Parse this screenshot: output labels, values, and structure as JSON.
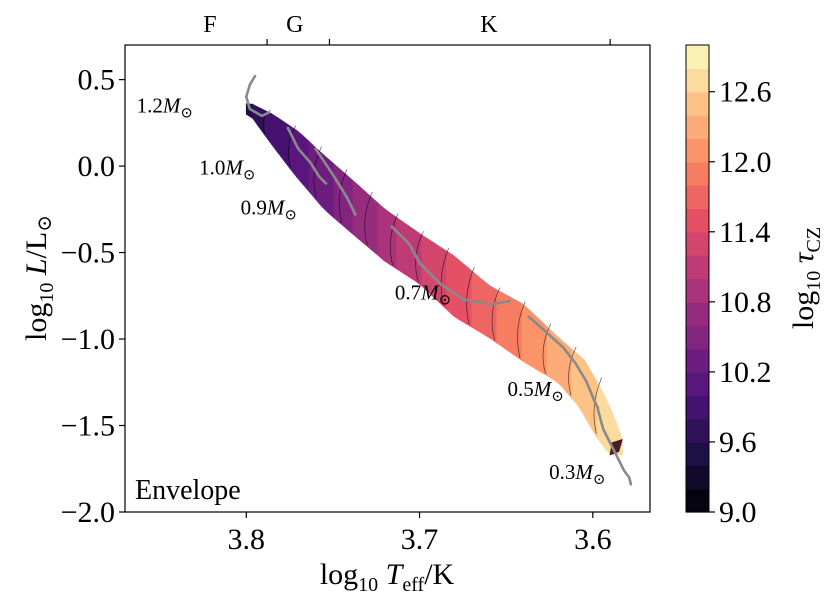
{
  "chart_data": {
    "type": "scatter",
    "panel_label": "Envelope",
    "xaxis": {
      "min": 3.87,
      "max": 3.567,
      "inverted": true,
      "ticks": [
        3.8,
        3.7,
        3.6
      ],
      "tick_labels": [
        "3.8",
        "3.7",
        "3.6"
      ],
      "label_prefix": "log",
      "label_sub": "10",
      "label_var": "T",
      "label_var_sub": "eff",
      "label_suffix": "/K"
    },
    "yaxis": {
      "min": -2.0,
      "max": 0.7,
      "ticks": [
        0.5,
        0.0,
        -0.5,
        -1.0,
        -1.5,
        -2.0
      ],
      "tick_labels": [
        "0.5",
        "0.0",
        "−0.5",
        "−1.0",
        "−1.5",
        "−2.0"
      ],
      "label_prefix": "log",
      "label_sub": "10",
      "label_var": "L",
      "label_suffix": "/L",
      "label_sun": "⊙"
    },
    "top_axis": {
      "spectral_types": [
        "F",
        "G",
        "K"
      ],
      "spectral_label_x": [
        3.821,
        3.772,
        3.66
      ],
      "boundaries": [
        3.788,
        3.752,
        3.59
      ]
    },
    "colorbar": {
      "min": 9.0,
      "max": 13.0,
      "levels": 20,
      "ticks": [
        9.0,
        9.6,
        10.2,
        10.8,
        11.4,
        12.0,
        12.6
      ],
      "tick_labels": [
        "9.0",
        "9.6",
        "10.2",
        "10.8",
        "11.4",
        "12.0",
        "12.6"
      ],
      "label_prefix": "log",
      "label_sub": "10",
      "label_var": "τ",
      "label_var_sub": "CZ",
      "colormap": "magma",
      "colormap_stops": [
        "#000004",
        "#1c1044",
        "#4f127b",
        "#812581",
        "#b5367a",
        "#e55064",
        "#fb8861",
        "#fec287",
        "#fcfdbf"
      ]
    },
    "band": {
      "color_value": "linear in log Teff",
      "upper_edge": [
        [
          3.797,
          0.36
        ],
        [
          3.785,
          0.3
        ],
        [
          3.77,
          0.2
        ],
        [
          3.755,
          0.06
        ],
        [
          3.74,
          -0.07
        ],
        [
          3.72,
          -0.25
        ],
        [
          3.7,
          -0.39
        ],
        [
          3.68,
          -0.52
        ],
        [
          3.66,
          -0.69
        ],
        [
          3.64,
          -0.8
        ],
        [
          3.62,
          -0.99
        ],
        [
          3.605,
          -1.12
        ],
        [
          3.595,
          -1.29
        ],
        [
          3.588,
          -1.44
        ],
        [
          3.583,
          -1.58
        ]
      ],
      "lower_edge": [
        [
          3.59,
          -1.67
        ],
        [
          3.597,
          -1.58
        ],
        [
          3.608,
          -1.39
        ],
        [
          3.62,
          -1.25
        ],
        [
          3.64,
          -1.13
        ],
        [
          3.66,
          -0.99
        ],
        [
          3.68,
          -0.87
        ],
        [
          3.7,
          -0.68
        ],
        [
          3.72,
          -0.55
        ],
        [
          3.74,
          -0.38
        ],
        [
          3.755,
          -0.25
        ],
        [
          3.772,
          -0.05
        ],
        [
          3.785,
          0.12
        ],
        [
          3.798,
          0.3
        ]
      ]
    },
    "tracks": [
      {
        "mass": "1.2",
        "points": [
          [
            3.795,
            0.52
          ],
          [
            3.798,
            0.47
          ],
          [
            3.8,
            0.4
          ],
          [
            3.798,
            0.33
          ],
          [
            3.791,
            0.29
          ],
          [
            3.787,
            0.31
          ]
        ]
      },
      {
        "mass": "1.0",
        "points": [
          [
            3.776,
            0.22
          ],
          [
            3.773,
            0.16
          ],
          [
            3.77,
            0.1
          ],
          [
            3.763,
            0.02
          ],
          [
            3.758,
            -0.06
          ],
          [
            3.754,
            -0.1
          ]
        ]
      },
      {
        "mass": "0.9",
        "points": [
          [
            3.76,
            0.1
          ],
          [
            3.75,
            -0.05
          ],
          [
            3.742,
            -0.18
          ],
          [
            3.737,
            -0.28
          ]
        ]
      },
      {
        "mass": "0.7",
        "points": [
          [
            3.716,
            -0.35
          ],
          [
            3.706,
            -0.45
          ],
          [
            3.7,
            -0.56
          ],
          [
            3.688,
            -0.68
          ],
          [
            3.675,
            -0.77
          ],
          [
            3.658,
            -0.8
          ],
          [
            3.648,
            -0.78
          ]
        ]
      },
      {
        "mass": "0.5",
        "points": [
          [
            3.637,
            -0.87
          ],
          [
            3.628,
            -0.95
          ],
          [
            3.617,
            -1.05
          ],
          [
            3.61,
            -1.14
          ],
          [
            3.604,
            -1.24
          ],
          [
            3.599,
            -1.36
          ],
          [
            3.597,
            -1.4
          ]
        ]
      },
      {
        "mass": "0.3",
        "points": [
          [
            3.597,
            -1.41
          ],
          [
            3.594,
            -1.52
          ],
          [
            3.59,
            -1.6
          ],
          [
            3.586,
            -1.68
          ],
          [
            3.582,
            -1.76
          ],
          [
            3.579,
            -1.8
          ],
          [
            3.578,
            -1.84
          ]
        ]
      }
    ],
    "mass_labels": [
      {
        "text": "1.2",
        "unit": "M",
        "sun": "⊙",
        "x": 3.847,
        "y": 0.31
      },
      {
        "text": "1.0",
        "unit": "M",
        "sun": "⊙",
        "x": 3.811,
        "y": -0.05
      },
      {
        "text": "0.9",
        "unit": "M",
        "sun": "⊙",
        "x": 3.787,
        "y": -0.28
      },
      {
        "text": "0.7",
        "unit": "M",
        "sun": "⊙",
        "x": 3.698,
        "y": -0.77
      },
      {
        "text": "0.5",
        "unit": "M",
        "sun": "⊙",
        "x": 3.633,
        "y": -1.33
      },
      {
        "text": "0.3",
        "unit": "M",
        "sun": "⊙",
        "x": 3.609,
        "y": -1.81
      }
    ]
  }
}
